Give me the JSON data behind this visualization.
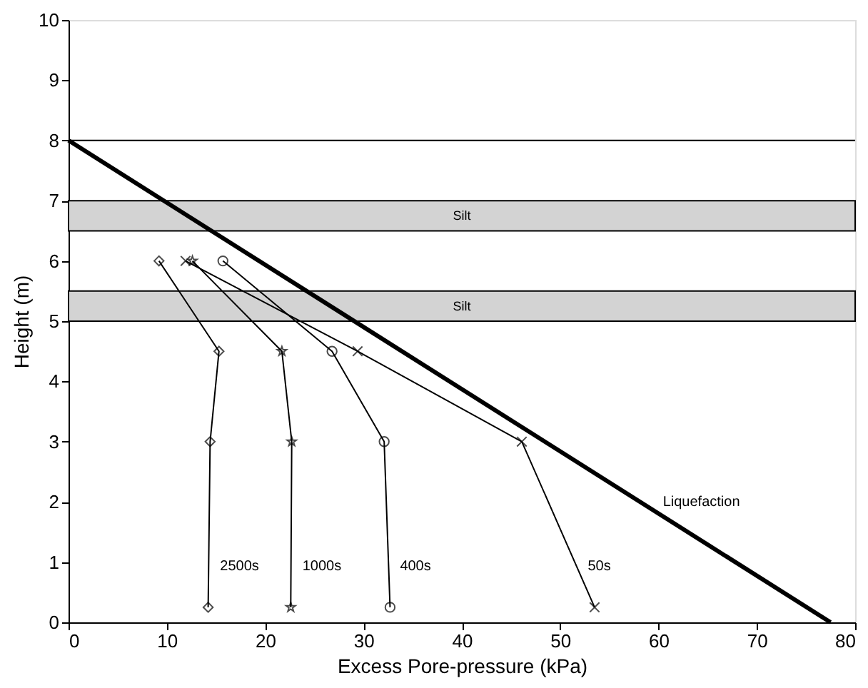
{
  "chart_data": {
    "type": "line",
    "xlabel": "Excess Pore-pressure (kPa)",
    "ylabel": "Height (m)",
    "series": [
      {
        "name": "2500s",
        "color": "#000000",
        "marker": "diamond",
        "x": [
          9.2,
          15.3,
          14.4,
          14.2
        ],
        "values": [
          6,
          4.5,
          3,
          0.25
        ]
      },
      {
        "name": "1000s",
        "color": "#000000",
        "marker": "star",
        "x": [
          12.6,
          21.7,
          22.7,
          22.6
        ],
        "values": [
          6,
          4.5,
          3,
          0.25
        ]
      },
      {
        "name": "400s",
        "color": "#000000",
        "marker": "circle",
        "x": [
          15.7,
          26.8,
          32.1,
          32.7
        ],
        "values": [
          6,
          4.5,
          3,
          0.25
        ]
      },
      {
        "name": "50s",
        "color": "#000000",
        "marker": "cross",
        "x": [
          11.9,
          29.4,
          46.1,
          53.5
        ],
        "values": [
          6,
          4.5,
          3,
          0.25
        ]
      },
      {
        "name": "Liquefaction",
        "color": "#000000",
        "marker": "none",
        "x": [
          0,
          77.5
        ],
        "values": [
          8,
          0
        ]
      }
    ],
    "ref_lines": [
      {
        "axis": "y",
        "value": 8,
        "color": "#000000"
      }
    ],
    "bands": [
      {
        "axis": "y",
        "from": 6.5,
        "to": 7,
        "label": "Silt",
        "color": "#d3d3d3"
      },
      {
        "axis": "y",
        "from": 5,
        "to": 5.5,
        "label": "Silt",
        "color": "#d3d3d3"
      }
    ],
    "xlim": [
      0,
      80
    ],
    "ylim": [
      0,
      10
    ],
    "xticks": [
      0,
      10,
      20,
      30,
      40,
      50,
      60,
      70,
      80
    ],
    "yticks": [
      0,
      1,
      2,
      3,
      4,
      5,
      6,
      7,
      8,
      9,
      10
    ],
    "grid": false,
    "line_style": "solid"
  }
}
